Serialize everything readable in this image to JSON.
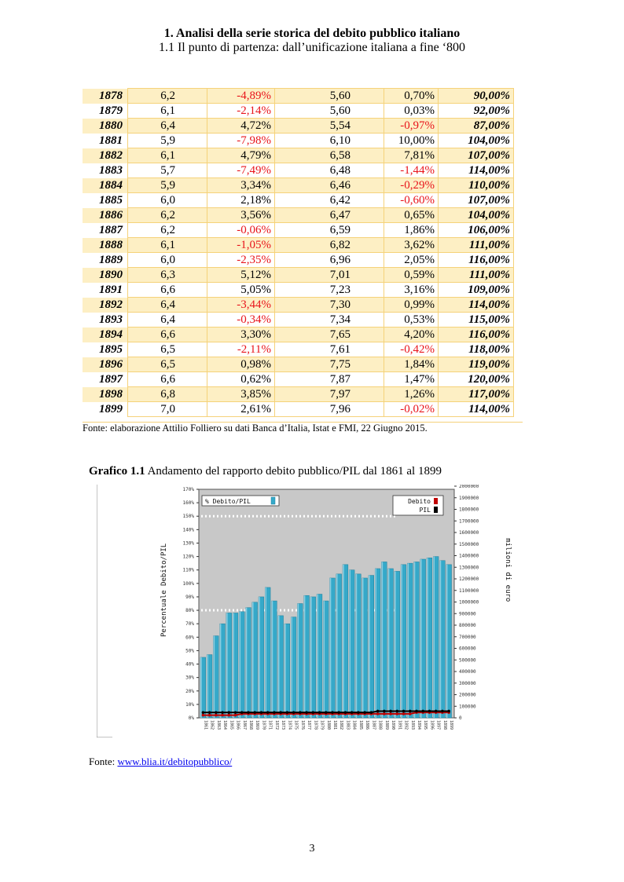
{
  "header": {
    "title": "1. Analisi della serie storica del debito pubblico italiano",
    "subtitle": "1.1 Il punto di partenza: dall’unificazione italiana a fine ‘800"
  },
  "table": {
    "rows": [
      [
        "1878",
        "6,2",
        "-4,89%",
        "5,60",
        "0,70%",
        "90,00%"
      ],
      [
        "1879",
        "6,1",
        "-2,14%",
        "5,60",
        "0,03%",
        "92,00%"
      ],
      [
        "1880",
        "6,4",
        "4,72%",
        "5,54",
        "-0,97%",
        "87,00%"
      ],
      [
        "1881",
        "5,9",
        "-7,98%",
        "6,10",
        "10,00%",
        "104,00%"
      ],
      [
        "1882",
        "6,1",
        "4,79%",
        "6,58",
        "7,81%",
        "107,00%"
      ],
      [
        "1883",
        "5,7",
        "-7,49%",
        "6,48",
        "-1,44%",
        "114,00%"
      ],
      [
        "1884",
        "5,9",
        "3,34%",
        "6,46",
        "-0,29%",
        "110,00%"
      ],
      [
        "1885",
        "6,0",
        "2,18%",
        "6,42",
        "-0,60%",
        "107,00%"
      ],
      [
        "1886",
        "6,2",
        "3,56%",
        "6,47",
        "0,65%",
        "104,00%"
      ],
      [
        "1887",
        "6,2",
        "-0,06%",
        "6,59",
        "1,86%",
        "106,00%"
      ],
      [
        "1888",
        "6,1",
        "-1,05%",
        "6,82",
        "3,62%",
        "111,00%"
      ],
      [
        "1889",
        "6,0",
        "-2,35%",
        "6,96",
        "2,05%",
        "116,00%"
      ],
      [
        "1890",
        "6,3",
        "5,12%",
        "7,01",
        "0,59%",
        "111,00%"
      ],
      [
        "1891",
        "6,6",
        "5,05%",
        "7,23",
        "3,16%",
        "109,00%"
      ],
      [
        "1892",
        "6,4",
        "-3,44%",
        "7,30",
        "0,99%",
        "114,00%"
      ],
      [
        "1893",
        "6,4",
        "-0,34%",
        "7,34",
        "0,53%",
        "115,00%"
      ],
      [
        "1894",
        "6,6",
        "3,30%",
        "7,65",
        "4,20%",
        "116,00%"
      ],
      [
        "1895",
        "6,5",
        "-2,11%",
        "7,61",
        "-0,42%",
        "118,00%"
      ],
      [
        "1896",
        "6,5",
        "0,98%",
        "7,75",
        "1,84%",
        "119,00%"
      ],
      [
        "1897",
        "6,6",
        "0,62%",
        "7,87",
        "1,47%",
        "120,00%"
      ],
      [
        "1898",
        "6,8",
        "3,85%",
        "7,97",
        "1,26%",
        "117,00%"
      ],
      [
        "1899",
        "7,0",
        "2,61%",
        "7,96",
        "-0,02%",
        "114,00%"
      ]
    ],
    "source": "Fonte: elaborazione Attilio Folliero su dati Banca d’Italia, Istat e FMI, 22 Giugno 2015."
  },
  "figure": {
    "label": "Grafico 1.1",
    "caption": "Andamento del rapporto debito pubblico/PIL dal 1861 al 1899",
    "source_prefix": "Fonte: ",
    "source_link": "www.blia.it/debitopubblico/"
  },
  "page_number": "3",
  "colors": {
    "bar": "#35a9c9",
    "plot_bg": "#c8c8c8",
    "negative": "#e8141b",
    "table_border": "#f5d27a",
    "table_shade": "#fdefc4"
  },
  "chart_data": {
    "type": "bar",
    "ylabel": "Percentuale Debito/PIL",
    "y2label": "milioni di euro",
    "legend_left": [
      "% Debito/PIL"
    ],
    "legend_right": [
      "Debito",
      "PIL"
    ],
    "yticks": [
      "0%",
      "10%",
      "20%",
      "30%",
      "40%",
      "50%",
      "60%",
      "70%",
      "80%",
      "90%",
      "100%",
      "110%",
      "120%",
      "130%",
      "140%",
      "150%",
      "160%",
      "170%"
    ],
    "y2ticks": [
      "0",
      "100000",
      "200000",
      "300000",
      "400000",
      "500000",
      "600000",
      "700000",
      "800000",
      "900000",
      "1000000",
      "1100000",
      "1200000",
      "1300000",
      "1400000",
      "1500000",
      "1600000",
      "1700000",
      "1800000",
      "1900000",
      "2000000"
    ],
    "ylim": [
      0,
      170
    ],
    "categories": [
      "1861",
      "1862",
      "1863",
      "1864",
      "1865",
      "1866",
      "1867",
      "1868",
      "1869",
      "1870",
      "1871",
      "1872",
      "1873",
      "1874",
      "1875",
      "1876",
      "1877",
      "1878",
      "1879",
      "1880",
      "1881",
      "1882",
      "1883",
      "1884",
      "1885",
      "1886",
      "1887",
      "1888",
      "1889",
      "1890",
      "1891",
      "1892",
      "1893",
      "1894",
      "1895",
      "1896",
      "1897",
      "1898",
      "1899"
    ],
    "values": [
      45,
      47,
      61,
      70,
      78,
      78,
      79,
      82,
      86,
      90,
      97,
      87,
      76,
      70,
      75,
      85,
      91,
      90,
      92,
      87,
      104,
      107,
      114,
      110,
      107,
      104,
      106,
      111,
      116,
      111,
      109,
      114,
      115,
      116,
      118,
      119,
      120,
      117,
      114
    ],
    "debito_line": [
      2,
      2,
      2,
      2,
      2,
      2,
      3,
      3,
      3,
      3,
      3,
      3,
      3,
      3,
      3,
      3,
      3,
      3,
      3,
      3,
      3,
      3,
      3,
      3,
      3,
      3,
      3,
      3,
      3,
      3,
      3,
      3,
      3,
      4,
      4,
      4,
      4,
      4,
      4
    ],
    "pil_line": [
      4,
      4,
      4,
      4,
      4,
      4,
      4,
      4,
      4,
      4,
      4,
      4,
      4,
      4,
      4,
      4,
      4,
      4,
      4,
      4,
      4,
      4,
      4,
      4,
      4,
      4,
      4,
      5,
      5,
      5,
      5,
      5,
      5,
      5,
      5,
      5,
      5,
      5,
      5
    ]
  }
}
